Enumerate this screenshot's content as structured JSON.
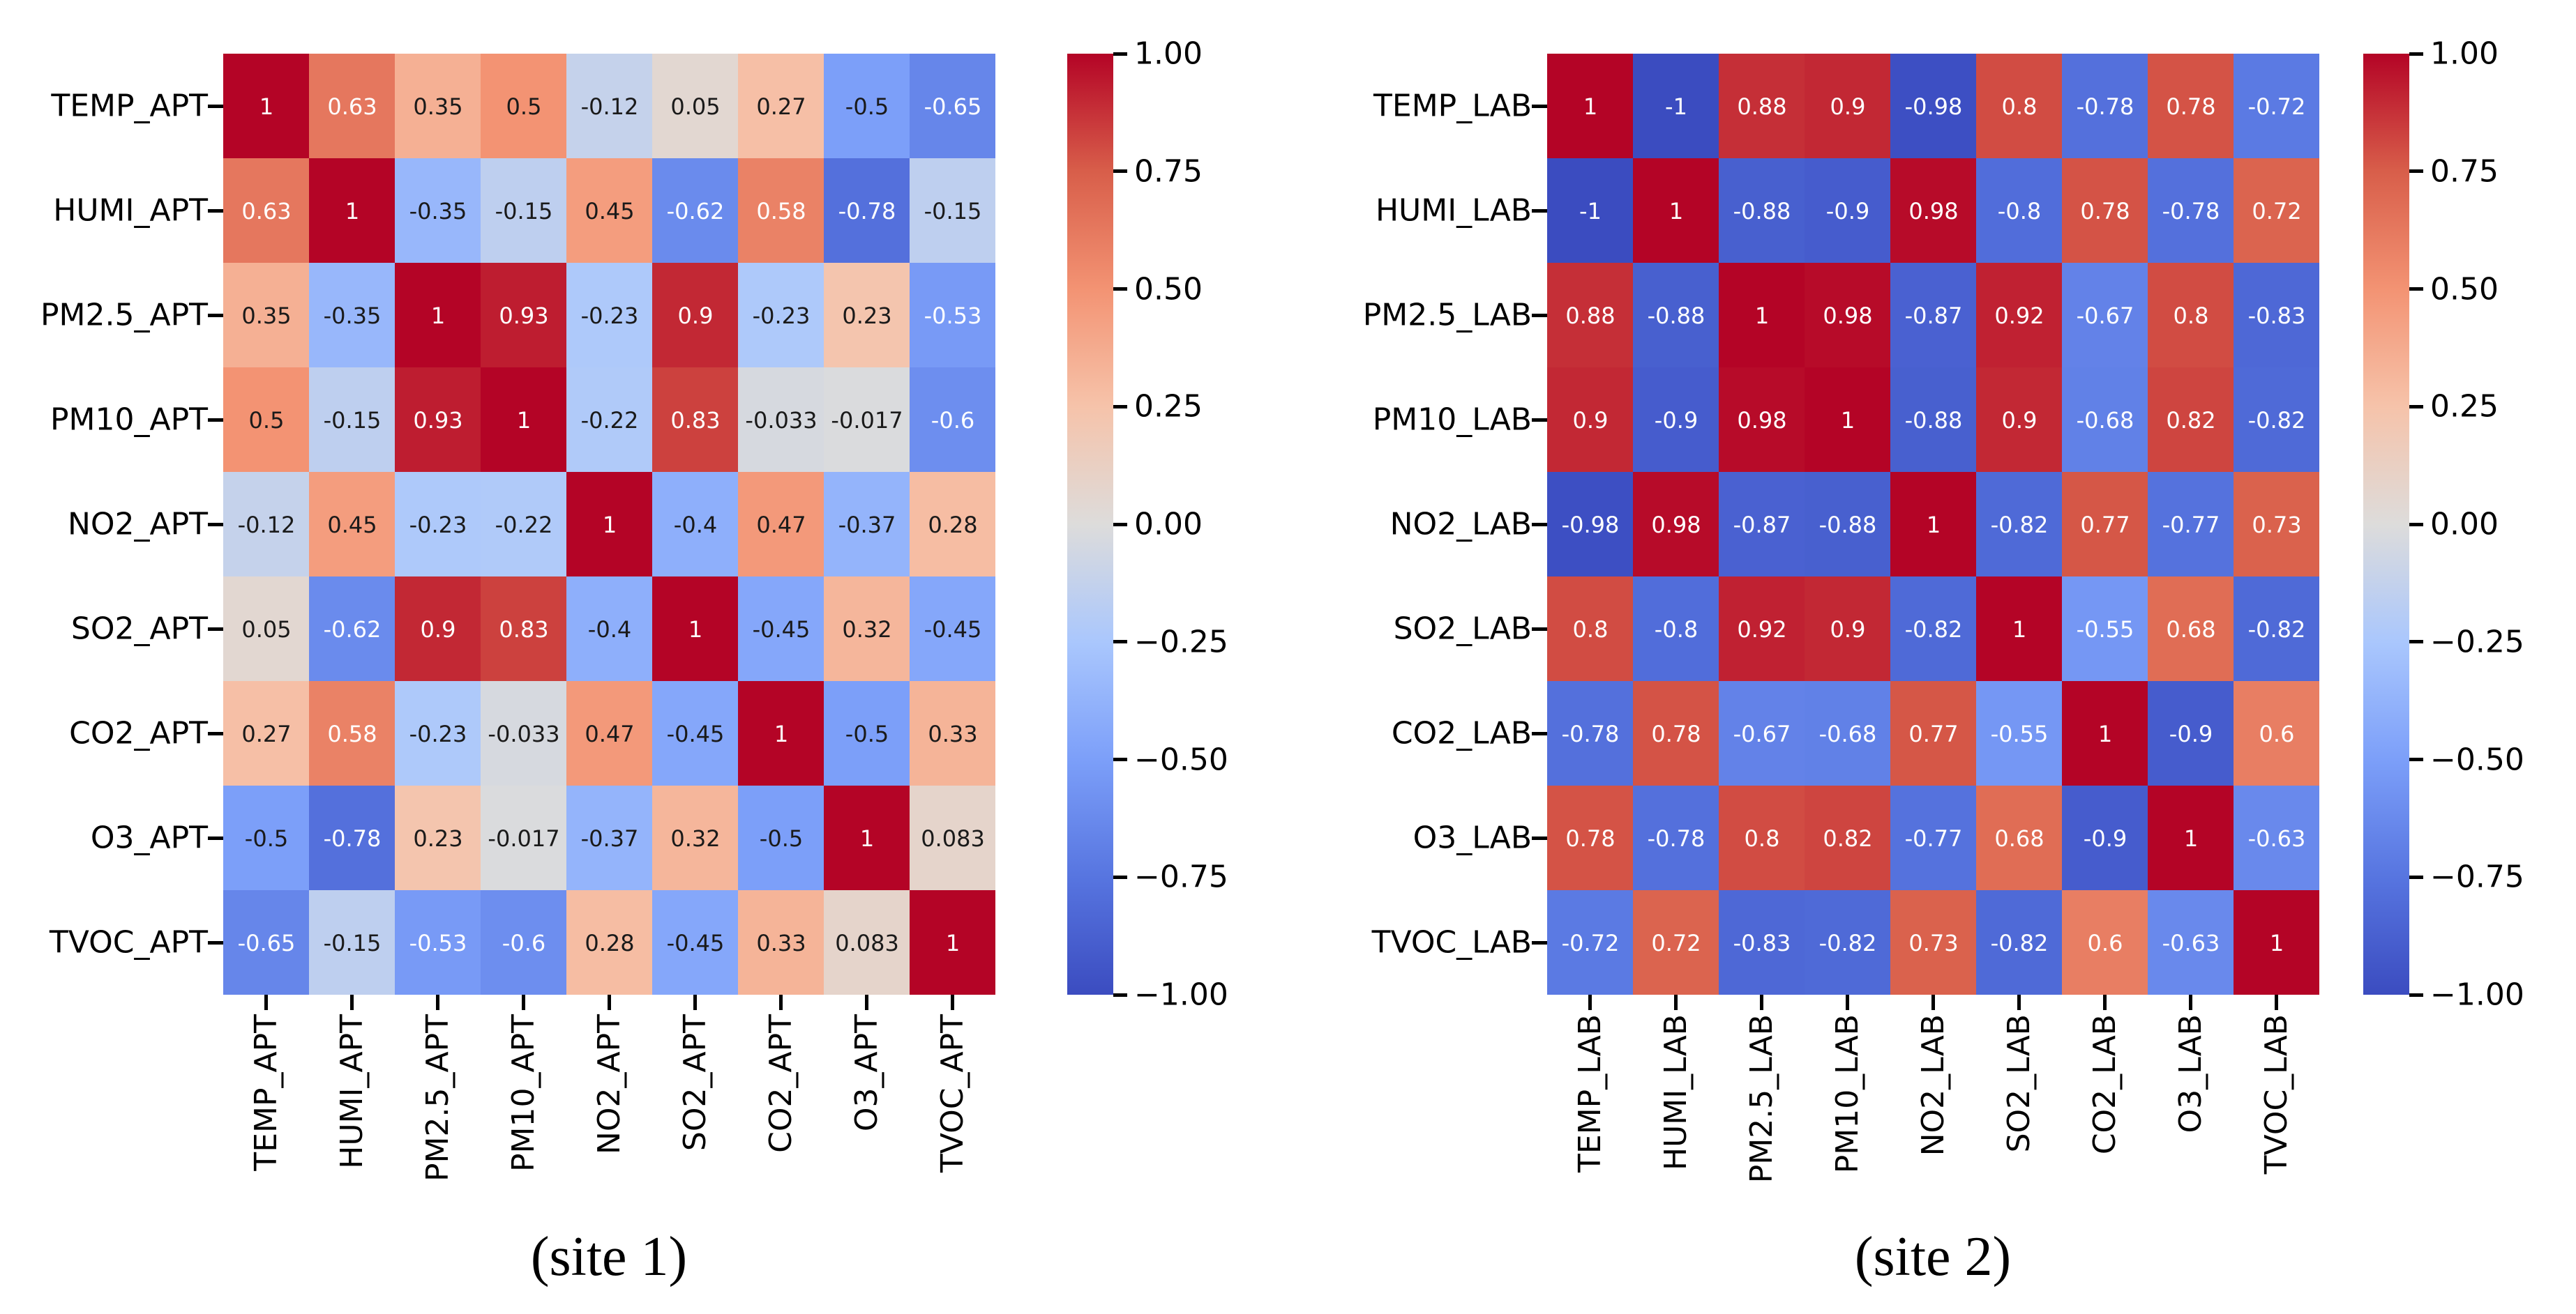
{
  "figure": {
    "background": "#ffffff"
  },
  "colorbar": {
    "vmin": -1,
    "vmax": 1,
    "ticks": [
      "1.00",
      "0.75",
      "0.50",
      "0.25",
      "0.00",
      "−0.25",
      "−0.50",
      "−0.75",
      "−1.00"
    ]
  },
  "colormap": {
    "name": "coolwarm",
    "anchors": [
      {
        "v": -1.0,
        "color": "#3b4cc0"
      },
      {
        "v": -0.75,
        "color": "#5775e0"
      },
      {
        "v": -0.5,
        "color": "#7c9ff9"
      },
      {
        "v": -0.25,
        "color": "#aac7fd"
      },
      {
        "v": 0.0,
        "color": "#dddcdb"
      },
      {
        "v": 0.25,
        "color": "#f6c3aa"
      },
      {
        "v": 0.5,
        "color": "#f39373"
      },
      {
        "v": 0.75,
        "color": "#d85e4a"
      },
      {
        "v": 1.0,
        "color": "#b40426"
      }
    ],
    "annot_color_dark": "#1a1a1a",
    "annot_color_light": "#ffffff"
  },
  "chart_data": [
    {
      "type": "heatmap",
      "title": "(site 1)",
      "legend_position": "right-colorbar",
      "axis_range": [
        -1,
        1
      ],
      "labels": [
        "TEMP_APT",
        "HUMI_APT",
        "PM2.5_APT",
        "PM10_APT",
        "NO2_APT",
        "SO2_APT",
        "CO2_APT",
        "O3_APT",
        "TVOC_APT"
      ],
      "matrix": [
        [
          "1",
          "0.63",
          "0.35",
          "0.5",
          "-0.12",
          "0.05",
          "0.27",
          "-0.5",
          "-0.65"
        ],
        [
          "0.63",
          "1",
          "-0.35",
          "-0.15",
          "0.45",
          "-0.62",
          "0.58",
          "-0.78",
          "-0.15"
        ],
        [
          "0.35",
          "-0.35",
          "1",
          "0.93",
          "-0.23",
          "0.9",
          "-0.23",
          "0.23",
          "-0.53"
        ],
        [
          "0.5",
          "-0.15",
          "0.93",
          "1",
          "-0.22",
          "0.83",
          "-0.033",
          "-0.017",
          "-0.6"
        ],
        [
          "-0.12",
          "0.45",
          "-0.23",
          "-0.22",
          "1",
          "-0.4",
          "0.47",
          "-0.37",
          "0.28"
        ],
        [
          "0.05",
          "-0.62",
          "0.9",
          "0.83",
          "-0.4",
          "1",
          "-0.45",
          "0.32",
          "-0.45"
        ],
        [
          "0.27",
          "0.58",
          "-0.23",
          "-0.033",
          "0.47",
          "-0.45",
          "1",
          "-0.5",
          "0.33"
        ],
        [
          "-0.5",
          "-0.78",
          "0.23",
          "-0.017",
          "-0.37",
          "0.32",
          "-0.5",
          "1",
          "0.083"
        ],
        [
          "-0.65",
          "-0.15",
          "-0.53",
          "-0.6",
          "0.28",
          "-0.45",
          "0.33",
          "0.083",
          "1"
        ]
      ]
    },
    {
      "type": "heatmap",
      "title": "(site 2)",
      "legend_position": "right-colorbar",
      "axis_range": [
        -1,
        1
      ],
      "labels": [
        "TEMP_LAB",
        "HUMI_LAB",
        "PM2.5_LAB",
        "PM10_LAB",
        "NO2_LAB",
        "SO2_LAB",
        "CO2_LAB",
        "O3_LAB",
        "TVOC_LAB"
      ],
      "matrix": [
        [
          "1",
          "-1",
          "0.88",
          "0.9",
          "-0.98",
          "0.8",
          "-0.78",
          "0.78",
          "-0.72"
        ],
        [
          "-1",
          "1",
          "-0.88",
          "-0.9",
          "0.98",
          "-0.8",
          "0.78",
          "-0.78",
          "0.72"
        ],
        [
          "0.88",
          "-0.88",
          "1",
          "0.98",
          "-0.87",
          "0.92",
          "-0.67",
          "0.8",
          "-0.83"
        ],
        [
          "0.9",
          "-0.9",
          "0.98",
          "1",
          "-0.88",
          "0.9",
          "-0.68",
          "0.82",
          "-0.82"
        ],
        [
          "-0.98",
          "0.98",
          "-0.87",
          "-0.88",
          "1",
          "-0.82",
          "0.77",
          "-0.77",
          "0.73"
        ],
        [
          "0.8",
          "-0.8",
          "0.92",
          "0.9",
          "-0.82",
          "1",
          "-0.55",
          "0.68",
          "-0.82"
        ],
        [
          "-0.78",
          "0.78",
          "-0.67",
          "-0.68",
          "0.77",
          "-0.55",
          "1",
          "-0.9",
          "0.6"
        ],
        [
          "0.78",
          "-0.78",
          "0.8",
          "0.82",
          "-0.77",
          "0.68",
          "-0.9",
          "1",
          "-0.63"
        ],
        [
          "-0.72",
          "0.72",
          "-0.83",
          "-0.82",
          "0.73",
          "-0.82",
          "0.6",
          "-0.63",
          "1"
        ]
      ]
    }
  ]
}
